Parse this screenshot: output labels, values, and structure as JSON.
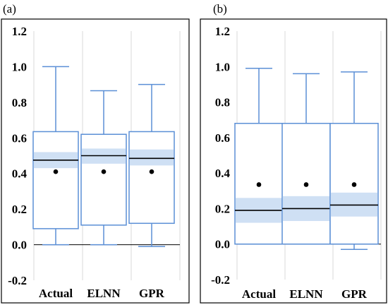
{
  "colors": {
    "box": "#5b8fd6",
    "ci": "#cfe0f4",
    "median": "#000000",
    "mean": "#000000",
    "grid": "#d9d9d9",
    "zero_line": "#000000",
    "frame": "#000000"
  },
  "chart_data": [
    {
      "type": "box",
      "panel_label": "(a)",
      "title": "",
      "xlabel": "",
      "ylabel": "",
      "ylim": [
        -0.2,
        1.2
      ],
      "yticks": [
        -0.2,
        0.0,
        0.2,
        0.4,
        0.6,
        0.8,
        1.0,
        1.2
      ],
      "ytick_labels": [
        "-0.2",
        "0.0",
        "0.2",
        "0.4",
        "0.6",
        "0.8",
        "1.0",
        "1.2"
      ],
      "grid": "vertical",
      "categories": [
        "Actual",
        "ELNN",
        "GPR"
      ],
      "boxes": [
        {
          "name": "Actual",
          "min": 0.0,
          "q1": 0.09,
          "median": 0.475,
          "q3": 0.635,
          "max": 1.0,
          "mean": 0.41,
          "ci": [
            0.43,
            0.52
          ]
        },
        {
          "name": "ELNN",
          "min": 0.0,
          "q1": 0.11,
          "median": 0.5,
          "q3": 0.62,
          "max": 0.865,
          "mean": 0.41,
          "ci": [
            0.455,
            0.54
          ]
        },
        {
          "name": "GPR",
          "min": -0.01,
          "q1": 0.12,
          "median": 0.485,
          "q3": 0.635,
          "max": 0.9,
          "mean": 0.41,
          "ci": [
            0.445,
            0.535
          ]
        }
      ]
    },
    {
      "type": "box",
      "panel_label": "(b)",
      "title": "",
      "xlabel": "",
      "ylabel": "",
      "ylim": [
        -0.2,
        1.2
      ],
      "yticks": [
        -0.2,
        0.0,
        0.2,
        0.4,
        0.6,
        0.8,
        1.0,
        1.2
      ],
      "ytick_labels": [
        "-0.2",
        "0.0",
        "0.2",
        "0.4",
        "0.6",
        "0.8",
        "1.0",
        "1.2"
      ],
      "grid": "vertical",
      "categories": [
        "Actual",
        "ELNN",
        "GPR"
      ],
      "boxes": [
        {
          "name": "Actual",
          "min": 0.0,
          "q1": 0.0,
          "median": 0.19,
          "q3": 0.68,
          "max": 0.99,
          "mean": 0.335,
          "ci": [
            0.12,
            0.26
          ]
        },
        {
          "name": "ELNN",
          "min": 0.0,
          "q1": 0.0,
          "median": 0.2,
          "q3": 0.68,
          "max": 0.96,
          "mean": 0.335,
          "ci": [
            0.13,
            0.27
          ]
        },
        {
          "name": "GPR",
          "min": -0.03,
          "q1": 0.0,
          "median": 0.22,
          "q3": 0.68,
          "max": 0.97,
          "mean": 0.335,
          "ci": [
            0.155,
            0.29
          ]
        }
      ]
    }
  ]
}
